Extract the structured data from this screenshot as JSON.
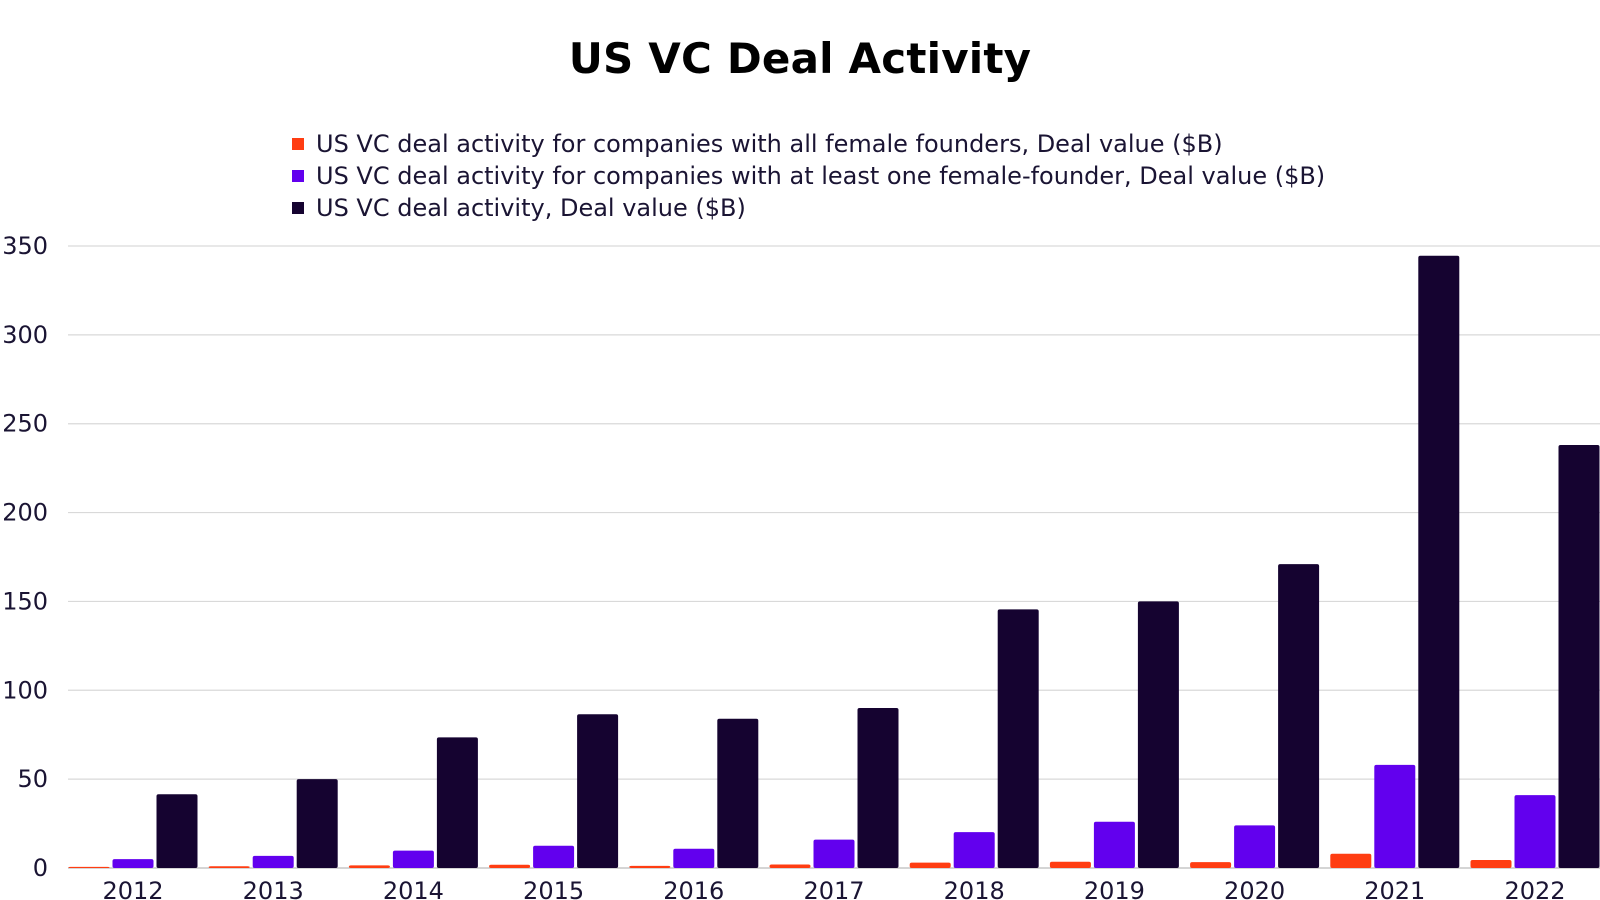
{
  "chart_data": {
    "type": "bar",
    "title": "US VC Deal Activity",
    "xlabel": "",
    "ylabel": "",
    "categories": [
      "2012",
      "2013",
      "2014",
      "2015",
      "2016",
      "2017",
      "2018",
      "2019",
      "2020",
      "2021",
      "2022"
    ],
    "series": [
      {
        "name": "US VC deal activity for companies with all female founders, Deal value ($B)",
        "color": "#ff3d12",
        "values": [
          0.6,
          1.0,
          1.5,
          1.8,
          1.2,
          2.0,
          3.0,
          3.5,
          3.3,
          8.0,
          4.5
        ]
      },
      {
        "name": "US VC deal activity for companies with at least one female-founder, Deal value ($B)",
        "color": "#6200ee",
        "values": [
          5.0,
          6.8,
          9.8,
          12.5,
          10.8,
          16.0,
          20.2,
          26.0,
          24.0,
          58.0,
          41.0
        ]
      },
      {
        "name": "US VC deal activity, Deal value ($B)",
        "color": "#150330",
        "values": [
          41.5,
          50.0,
          73.5,
          86.5,
          84.0,
          90.0,
          145.5,
          150.0,
          171.0,
          344.5,
          238.0
        ]
      }
    ],
    "ylim": [
      0,
      350
    ],
    "yticks": [
      "0",
      "50",
      "100",
      "150",
      "200",
      "250",
      "300",
      "350"
    ],
    "grid": true,
    "legend_position": "top-center"
  }
}
